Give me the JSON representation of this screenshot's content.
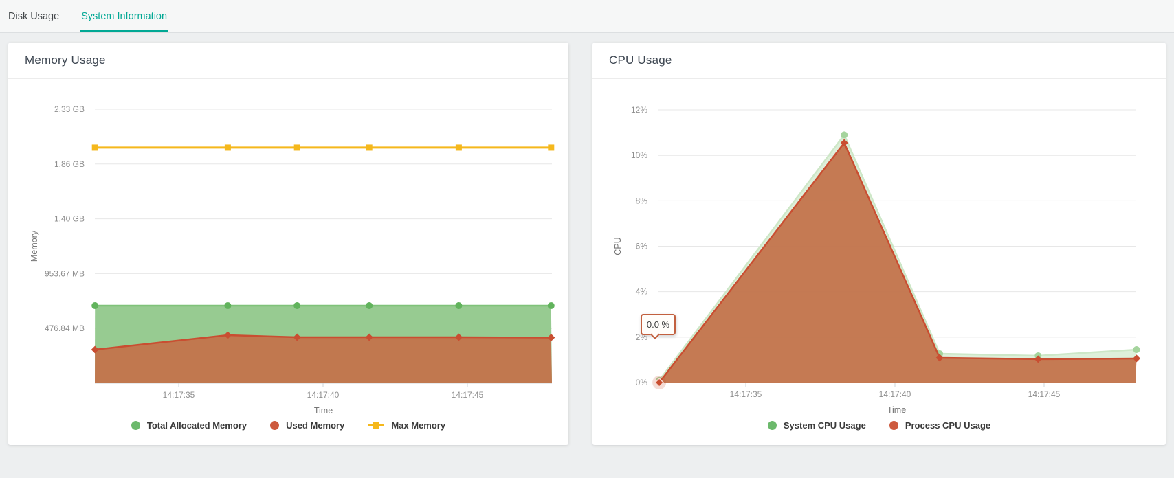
{
  "tabs": {
    "items": [
      {
        "label": "Disk Usage",
        "active": false
      },
      {
        "label": "System Information",
        "active": true
      }
    ],
    "accent_color": "#00a894"
  },
  "memory_card": {
    "title": "Memory Usage"
  },
  "cpu_card": {
    "title": "CPU Usage"
  },
  "cpu_tooltip": {
    "text": "0.0 %",
    "attached_series": "Process CPU Usage",
    "attached_point": "first"
  },
  "colors": {
    "teal_accent": "#00a894",
    "legend_green": "#6cb96c",
    "legend_red": "#cd5a3e",
    "legend_yellow": "#f5b81c",
    "memory_green_fill": "#97cb91",
    "memory_green_line": "#7fc279",
    "red_line": "#c94e31",
    "red_fill": "#c3734c",
    "cpu_pale_green_line": "#cde7c7",
    "cpu_pale_green_fill": "rgba(176,216,168,0.42)",
    "grid": "#e7e7e7",
    "axis_line": "#cfd4da",
    "axis_text": "#8f8f8f"
  },
  "chart_data": [
    {
      "id": "memory",
      "type": "area",
      "title": "Memory Usage",
      "xlabel": "Time",
      "ylabel": "Memory",
      "grid": true,
      "ylim_mb": [
        0,
        2384.19
      ],
      "yticks": [
        {
          "v": 2384.19,
          "label": "2.33 GB"
        },
        {
          "v": 1907.35,
          "label": "1.86 GB"
        },
        {
          "v": 1430.51,
          "label": "1.40 GB"
        },
        {
          "v": 953.67,
          "label": "953.67 MB"
        },
        {
          "v": 476.84,
          "label": "476.84 MB"
        }
      ],
      "xticks": [
        {
          "s": 35,
          "label": "14:17:35"
        },
        {
          "s": 40,
          "label": "14:17:40"
        },
        {
          "s": 45,
          "label": "14:17:45"
        }
      ],
      "x_times_s_after_1417": [
        32.1,
        36.7,
        39.1,
        41.6,
        44.7,
        47.9
      ],
      "series": [
        {
          "name": "Total Allocated Memory",
          "style": "green-area",
          "values_mb": [
            675,
            675,
            675,
            675,
            675,
            675
          ]
        },
        {
          "name": "Used Memory",
          "style": "red-area",
          "values_mb": [
            293,
            418,
            400,
            400,
            400,
            397
          ]
        },
        {
          "name": "Max Memory",
          "style": "yellow-line",
          "values_mb": [
            2050,
            2050,
            2050,
            2050,
            2050,
            2050
          ]
        }
      ],
      "legend": [
        {
          "label": "Total Allocated Memory",
          "marker": "circle",
          "color": "#6cb96c"
        },
        {
          "label": "Used Memory",
          "marker": "circle",
          "color": "#cd5a3e"
        },
        {
          "label": "Max Memory",
          "marker": "square-line",
          "color": "#f5b81c"
        }
      ],
      "legend_position": "bottom-center"
    },
    {
      "id": "cpu",
      "type": "area",
      "title": "CPU Usage",
      "xlabel": "Time",
      "ylabel": "CPU",
      "grid": true,
      "ylim_pct": [
        0,
        12
      ],
      "yticks": [
        {
          "v": 0,
          "label": "0%"
        },
        {
          "v": 2,
          "label": "2%"
        },
        {
          "v": 4,
          "label": "4%"
        },
        {
          "v": 6,
          "label": "6%"
        },
        {
          "v": 8,
          "label": "8%"
        },
        {
          "v": 10,
          "label": "10%"
        },
        {
          "v": 12,
          "label": "12%"
        }
      ],
      "xticks": [
        {
          "s": 35,
          "label": "14:17:35"
        },
        {
          "s": 40,
          "label": "14:17:40"
        },
        {
          "s": 45,
          "label": "14:17:45"
        }
      ],
      "x_times_s_after_1417": [
        32.1,
        38.3,
        41.5,
        44.8,
        48.1
      ],
      "series": [
        {
          "name": "System CPU Usage",
          "style": "pale-green-area",
          "values_pct": [
            0.1,
            10.9,
            1.27,
            1.18,
            1.45
          ]
        },
        {
          "name": "Process CPU Usage",
          "style": "red-area",
          "values_pct": [
            0.0,
            10.55,
            1.09,
            1.03,
            1.06
          ]
        }
      ],
      "legend": [
        {
          "label": "System CPU Usage",
          "marker": "circle",
          "color": "#6cb96c"
        },
        {
          "label": "Process CPU Usage",
          "marker": "circle",
          "color": "#cd5a3e"
        }
      ],
      "legend_position": "bottom-center"
    }
  ]
}
